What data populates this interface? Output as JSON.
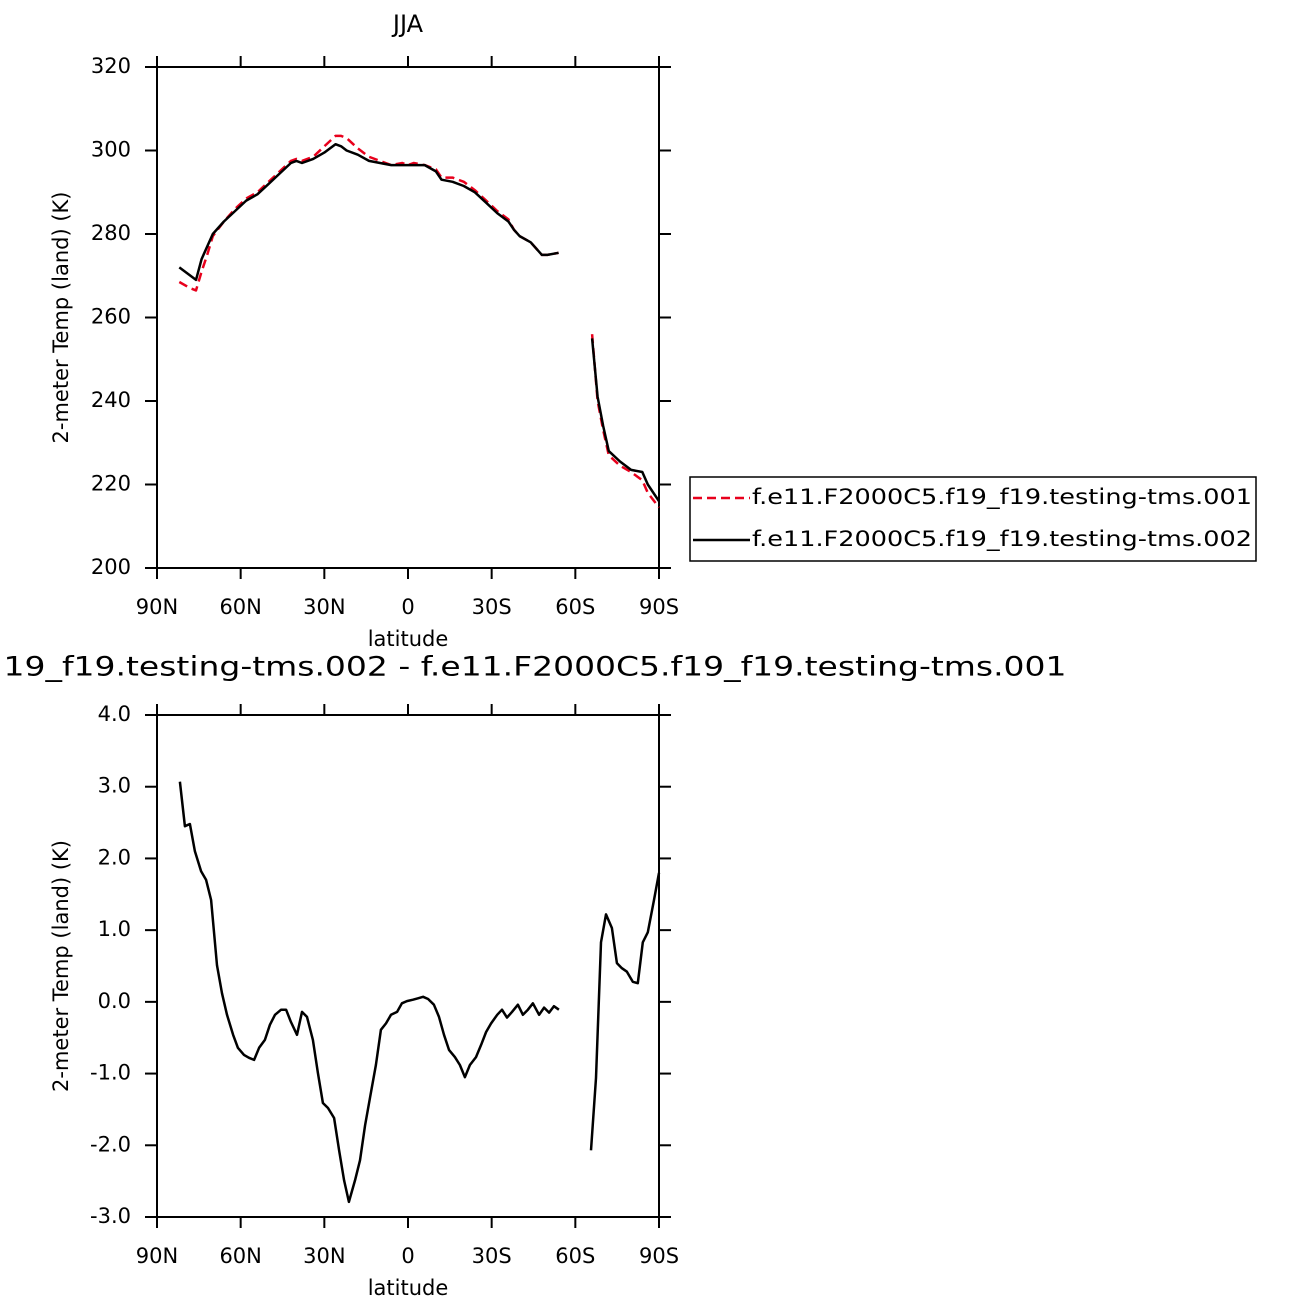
{
  "chart_data": [
    {
      "type": "line",
      "title": "JJA",
      "xlabel": "latitude",
      "ylabel": "2-meter Temp (land) (K)",
      "x": [
        82,
        78,
        76,
        74,
        72,
        70,
        66,
        62,
        58,
        54,
        50,
        46,
        42,
        40,
        38,
        34,
        30,
        26,
        24,
        22,
        18,
        14,
        10,
        6,
        2,
        0,
        -2,
        -6,
        -10,
        -12,
        -16,
        -20,
        -24,
        -28,
        -32,
        -36,
        -38,
        -40,
        -44,
        -48,
        -50,
        -54,
        -60,
        -66,
        -68,
        -70,
        -72,
        -76,
        -80,
        -84,
        -86,
        -90
      ],
      "series": [
        {
          "name": "f.e11.F2000C5.f19_f19.testing-tms.001",
          "color": "#e8001c",
          "dash": true,
          "values": [
            268.5,
            267,
            266.5,
            271,
            275,
            279.5,
            283,
            286,
            288.5,
            290,
            292.5,
            295,
            297.5,
            298,
            297.5,
            298.5,
            301,
            303.5,
            303.5,
            303,
            300.5,
            298.5,
            297.5,
            296.5,
            297,
            296.5,
            297,
            296.5,
            295.5,
            293.5,
            293.5,
            292.5,
            290.5,
            288,
            285.5,
            283.5,
            281,
            279.5,
            278,
            275,
            275,
            275.5,
            null,
            256,
            240,
            233,
            227,
            224.5,
            223,
            221,
            218,
            214.5
          ]
        },
        {
          "name": "f.e11.F2000C5.f19_f19.testing-tms.002",
          "color": "#000000",
          "dash": false,
          "values": [
            272,
            270,
            269,
            274,
            277,
            280,
            283,
            285.5,
            288,
            289.5,
            292,
            294.5,
            297,
            297.5,
            297,
            298,
            299.5,
            301.5,
            301,
            300,
            299,
            297.5,
            297,
            296.5,
            296.5,
            296.5,
            296.5,
            296.5,
            295,
            293,
            292.5,
            291.5,
            290,
            287.5,
            285,
            283,
            281,
            279.5,
            278,
            275,
            275,
            275.5,
            null,
            255,
            241,
            234,
            228,
            225.5,
            223.5,
            223,
            220,
            216
          ]
        }
      ],
      "xlim": [
        90,
        -90
      ],
      "xticks": [
        {
          "value": 90,
          "label": "90N"
        },
        {
          "value": 60,
          "label": "60N"
        },
        {
          "value": 30,
          "label": "30N"
        },
        0,
        {
          "value": -30,
          "label": "30S"
        },
        {
          "value": -60,
          "label": "60S"
        },
        {
          "value": -90,
          "label": "90S"
        }
      ],
      "ylim": [
        200,
        320
      ],
      "yticks": [
        200,
        220,
        240,
        260,
        280,
        300,
        320
      ],
      "legend": "right"
    },
    {
      "type": "line",
      "title": "19_f19.testing-tms.002 - f.e11.F2000C5.f19_f19.testing-tms.001",
      "xlabel": "latitude",
      "ylabel": "2-meter Temp (land) (K)",
      "x": [
        81.8,
        80,
        78.2,
        76.4,
        74.2,
        72.4,
        70.6,
        68.5,
        66.7,
        64.9,
        62.7,
        61,
        58.8,
        57,
        55.2,
        53.4,
        51.3,
        49.5,
        47.7,
        45.5,
        43.7,
        42,
        39.8,
        38,
        36.2,
        34.1,
        32.3,
        30.5,
        28.7,
        26.5,
        24.7,
        22.9,
        21.2,
        19,
        17.2,
        15.4,
        13.6,
        11.5,
        9.7,
        7.9,
        6.1,
        3.9,
        2.2,
        0.4,
        -1.8,
        -3.6,
        -5.4,
        -7.2,
        -9.3,
        -11.1,
        -12.9,
        -14.7,
        -16.8,
        -18.6,
        -20.4,
        -22.2,
        -24.4,
        -26.2,
        -28,
        -29.8,
        -32,
        -33.7,
        -35.5,
        -37.3,
        -39.4,
        -41.2,
        -43,
        -44.8,
        -47,
        -48.8,
        -50.6,
        -52.3,
        -54.1,
        -60,
        -65.6,
        -67.4,
        -69.2,
        -71,
        -73.1,
        -74.9,
        -76.7,
        -78.5,
        -80.6,
        -82.4,
        -84.2,
        -86,
        -88.2,
        -90
      ],
      "series": [
        {
          "color": "#000000",
          "dash": false,
          "values": [
            3.07,
            2.45,
            2.48,
            2.1,
            1.82,
            1.7,
            1.42,
            0.51,
            0.12,
            -0.18,
            -0.46,
            -0.64,
            -0.74,
            -0.78,
            -0.81,
            -0.64,
            -0.53,
            -0.32,
            -0.18,
            -0.11,
            -0.11,
            -0.28,
            -0.46,
            -0.14,
            -0.21,
            -0.53,
            -0.99,
            -1.41,
            -1.48,
            -1.62,
            -2.07,
            -2.49,
            -2.79,
            -2.49,
            -2.21,
            -1.72,
            -1.33,
            -0.88,
            -0.39,
            -0.3,
            -0.18,
            -0.14,
            -0.02,
            0.01,
            0.03,
            0.05,
            0.07,
            0.04,
            -0.04,
            -0.21,
            -0.46,
            -0.67,
            -0.77,
            -0.88,
            -1.05,
            -0.88,
            -0.77,
            -0.6,
            -0.42,
            -0.3,
            -0.18,
            -0.11,
            -0.22,
            -0.14,
            -0.04,
            -0.18,
            -0.11,
            -0.02,
            -0.18,
            -0.08,
            -0.15,
            -0.06,
            -0.11,
            null,
            -2.07,
            -1.06,
            0.83,
            1.22,
            1.03,
            0.54,
            0.47,
            0.42,
            0.28,
            0.26,
            0.83,
            0.97,
            1.42,
            1.8
          ]
        }
      ],
      "xlim": [
        90,
        -90
      ],
      "xticks": [
        {
          "value": 90,
          "label": "90N"
        },
        {
          "value": 60,
          "label": "60N"
        },
        {
          "value": 30,
          "label": "30N"
        },
        0,
        {
          "value": -30,
          "label": "30S"
        },
        {
          "value": -60,
          "label": "60S"
        },
        {
          "value": -90,
          "label": "90S"
        }
      ],
      "ylim": [
        -3,
        4
      ],
      "yticks": [
        {
          "value": -3,
          "label": "-3.0"
        },
        {
          "value": -2,
          "label": "-2.0"
        },
        {
          "value": -1,
          "label": "-1.0"
        },
        {
          "value": 0,
          "label": "0.0"
        },
        {
          "value": 1,
          "label": "1.0"
        },
        {
          "value": 2,
          "label": "2.0"
        },
        {
          "value": 3,
          "label": "3.0"
        },
        {
          "value": 4,
          "label": "4.0"
        }
      ]
    }
  ]
}
